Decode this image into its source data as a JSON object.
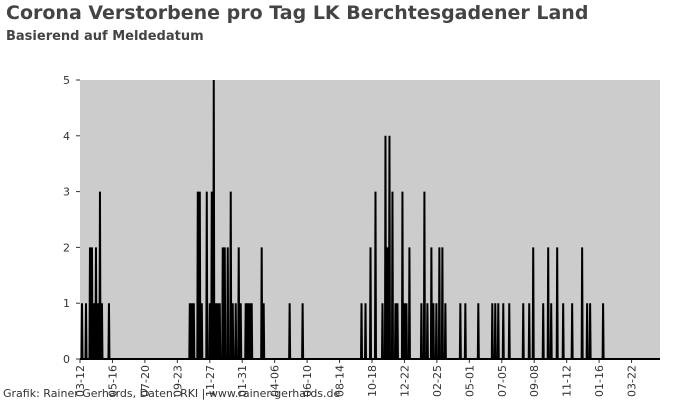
{
  "chart_data": {
    "type": "line",
    "title": "Corona Verstorbene pro Tag LK Berchtesgadener Land",
    "subtitle": "Basierend auf Meldedatum",
    "footer": "Grafik: Rainer Gerhards, Daten: RKI | www.rainer-gerhards.de",
    "color": "#000000",
    "background": "#cccccc",
    "ylim": [
      0,
      5
    ],
    "yticks": [
      0,
      1,
      2,
      3,
      4,
      5
    ],
    "xlim": [
      0,
      1162
    ],
    "xticks": [
      {
        "value": 0,
        "label": "03-12"
      },
      {
        "value": 65,
        "label": "05-16"
      },
      {
        "value": 130,
        "label": "07-20"
      },
      {
        "value": 195,
        "label": "09-23"
      },
      {
        "value": 260,
        "label": "11-27"
      },
      {
        "value": 325,
        "label": "01-31"
      },
      {
        "value": 390,
        "label": "04-06"
      },
      {
        "value": 455,
        "label": "06-10"
      },
      {
        "value": 520,
        "label": "08-14"
      },
      {
        "value": 585,
        "label": "10-18"
      },
      {
        "value": 650,
        "label": "12-22"
      },
      {
        "value": 715,
        "label": "02-25"
      },
      {
        "value": 780,
        "label": "05-01"
      },
      {
        "value": 845,
        "label": "07-05"
      },
      {
        "value": 910,
        "label": "09-08"
      },
      {
        "value": 975,
        "label": "11-12"
      },
      {
        "value": 1040,
        "label": "01-16"
      },
      {
        "value": 1105,
        "label": "03-22"
      }
    ],
    "x": [
      0,
      3,
      4,
      5,
      11,
      12,
      13,
      19,
      20,
      21,
      23,
      24,
      25,
      27,
      28,
      29,
      31,
      32,
      33,
      35,
      36,
      37,
      39,
      40,
      41,
      43,
      44,
      45,
      57,
      58,
      59,
      219,
      220,
      221,
      223,
      224,
      225,
      227,
      228,
      229,
      235,
      236,
      237,
      239,
      240,
      241,
      243,
      244,
      245,
      253,
      254,
      255,
      259,
      260,
      261,
      263,
      264,
      265,
      267,
      268,
      269,
      271,
      272,
      273,
      275,
      276,
      277,
      279,
      280,
      281,
      285,
      286,
      287,
      289,
      290,
      291,
      295,
      296,
      297,
      301,
      302,
      303,
      305,
      306,
      307,
      311,
      312,
      313,
      317,
      318,
      319,
      321,
      322,
      323,
      331,
      332,
      333,
      335,
      336,
      337,
      339,
      340,
      341,
      343,
      344,
      345,
      363,
      364,
      365,
      367,
      368,
      369,
      419,
      420,
      421,
      445,
      446,
      447,
      563,
      564,
      565,
      571,
      572,
      573,
      581,
      582,
      583,
      591,
      592,
      593,
      605,
      606,
      607,
      611,
      612,
      613,
      615,
      616,
      617,
      619,
      620,
      621,
      625,
      626,
      627,
      631,
      632,
      633,
      635,
      636,
      637,
      645,
      646,
      647,
      649,
      650,
      651,
      653,
      654,
      655,
      659,
      660,
      661,
      683,
      684,
      685,
      689,
      690,
      691,
      695,
      696,
      697,
      703,
      704,
      705,
      707,
      708,
      709,
      713,
      714,
      715,
      719,
      720,
      721,
      725,
      726,
      727,
      731,
      732,
      733,
      761,
      762,
      763,
      771,
      772,
      773,
      797,
      798,
      799,
      825,
      826,
      827,
      831,
      832,
      833,
      837,
      838,
      839,
      847,
      848,
      849,
      859,
      860,
      861,
      887,
      888,
      889,
      899,
      900,
      901,
      907,
      908,
      909,
      927,
      928,
      929,
      937,
      938,
      939,
      943,
      944,
      945,
      955,
      956,
      957,
      967,
      968,
      969,
      985,
      986,
      987,
      1005,
      1006,
      1007,
      1015,
      1016,
      1017,
      1021,
      1022,
      1023,
      1047,
      1048,
      1049,
      1162
    ],
    "values": [
      0,
      0,
      1,
      0,
      0,
      1,
      0,
      0,
      2,
      0,
      0,
      2,
      0,
      0,
      1,
      0,
      0,
      2,
      0,
      0,
      1,
      0,
      0,
      3,
      0,
      0,
      1,
      0,
      0,
      1,
      0,
      0,
      1,
      0,
      0,
      1,
      0,
      0,
      1,
      0,
      0,
      3,
      0,
      0,
      3,
      0,
      0,
      1,
      0,
      0,
      3,
      0,
      0,
      1,
      0,
      0,
      3,
      0,
      0,
      5,
      0,
      0,
      1,
      0,
      0,
      1,
      0,
      0,
      1,
      0,
      0,
      2,
      0,
      0,
      2,
      0,
      0,
      2,
      0,
      0,
      3,
      0,
      0,
      1,
      0,
      0,
      1,
      0,
      0,
      2,
      0,
      0,
      1,
      0,
      0,
      1,
      0,
      0,
      1,
      0,
      0,
      1,
      0,
      0,
      1,
      0,
      0,
      2,
      0,
      0,
      1,
      0,
      0,
      1,
      0,
      0,
      1,
      0,
      0,
      1,
      0,
      0,
      1,
      0,
      0,
      2,
      0,
      0,
      3,
      0,
      0,
      1,
      0,
      0,
      4,
      0,
      0,
      2,
      0,
      0,
      4,
      0,
      0,
      3,
      0,
      0,
      1,
      0,
      0,
      1,
      0,
      0,
      3,
      0,
      0,
      1,
      0,
      0,
      1,
      0,
      0,
      2,
      0,
      0,
      1,
      0,
      0,
      3,
      0,
      0,
      1,
      0,
      0,
      2,
      0,
      0,
      1,
      0,
      0,
      1,
      0,
      0,
      2,
      0,
      0,
      2,
      0,
      0,
      1,
      0,
      0,
      1,
      0,
      0,
      1,
      0,
      0,
      1,
      0,
      0,
      1,
      0,
      0,
      1,
      0,
      0,
      1,
      0,
      0,
      1,
      0,
      0,
      1,
      0,
      0,
      1,
      0,
      0,
      1,
      0,
      0,
      2,
      0,
      0,
      1,
      0,
      0,
      2,
      0,
      0,
      1,
      0,
      0,
      2,
      0,
      0,
      1,
      0,
      0,
      1,
      0,
      0,
      2,
      0,
      0,
      1,
      0,
      0,
      1,
      0,
      0,
      1,
      0,
      0
    ]
  }
}
